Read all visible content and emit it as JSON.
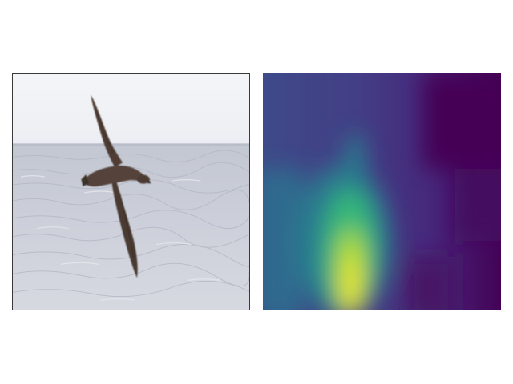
{
  "photo": {
    "subject_icon": "bird-icon",
    "sky_color": "#f1f2f6",
    "sea_color": "#c9ccd6",
    "bird_color": "#4a3a32"
  },
  "heatmap": {
    "colormap": "viridis",
    "low_color": "#440154",
    "mid_color": "#21918c",
    "high_color": "#fde725"
  }
}
